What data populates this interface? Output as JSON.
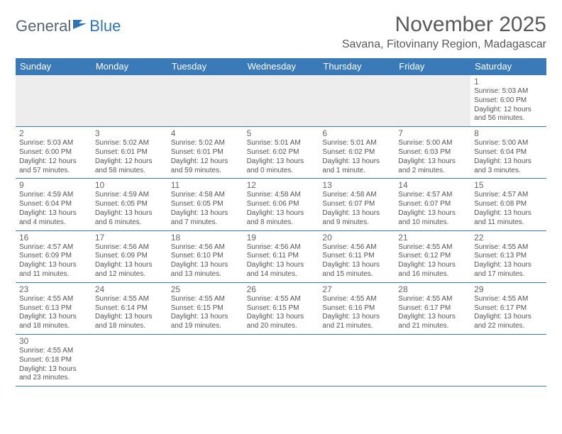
{
  "logo": {
    "general": "General",
    "blue": "Blue"
  },
  "title": "November 2025",
  "location": "Savana, Fitovinany Region, Madagascar",
  "colors": {
    "header_bg": "#3a7ab8",
    "header_text": "#ffffff",
    "title_color": "#595959",
    "logo_gray": "#566573",
    "logo_blue": "#2e75b6",
    "body_text": "#555555",
    "empty_bg": "#ededed",
    "border": "#3a7ab8"
  },
  "day_headers": [
    "Sunday",
    "Monday",
    "Tuesday",
    "Wednesday",
    "Thursday",
    "Friday",
    "Saturday"
  ],
  "weeks": [
    [
      null,
      null,
      null,
      null,
      null,
      null,
      {
        "n": "1",
        "sr": "Sunrise: 5:03 AM",
        "ss": "Sunset: 6:00 PM",
        "d1": "Daylight: 12 hours",
        "d2": "and 56 minutes."
      }
    ],
    [
      {
        "n": "2",
        "sr": "Sunrise: 5:03 AM",
        "ss": "Sunset: 6:00 PM",
        "d1": "Daylight: 12 hours",
        "d2": "and 57 minutes."
      },
      {
        "n": "3",
        "sr": "Sunrise: 5:02 AM",
        "ss": "Sunset: 6:01 PM",
        "d1": "Daylight: 12 hours",
        "d2": "and 58 minutes."
      },
      {
        "n": "4",
        "sr": "Sunrise: 5:02 AM",
        "ss": "Sunset: 6:01 PM",
        "d1": "Daylight: 12 hours",
        "d2": "and 59 minutes."
      },
      {
        "n": "5",
        "sr": "Sunrise: 5:01 AM",
        "ss": "Sunset: 6:02 PM",
        "d1": "Daylight: 13 hours",
        "d2": "and 0 minutes."
      },
      {
        "n": "6",
        "sr": "Sunrise: 5:01 AM",
        "ss": "Sunset: 6:02 PM",
        "d1": "Daylight: 13 hours",
        "d2": "and 1 minute."
      },
      {
        "n": "7",
        "sr": "Sunrise: 5:00 AM",
        "ss": "Sunset: 6:03 PM",
        "d1": "Daylight: 13 hours",
        "d2": "and 2 minutes."
      },
      {
        "n": "8",
        "sr": "Sunrise: 5:00 AM",
        "ss": "Sunset: 6:04 PM",
        "d1": "Daylight: 13 hours",
        "d2": "and 3 minutes."
      }
    ],
    [
      {
        "n": "9",
        "sr": "Sunrise: 4:59 AM",
        "ss": "Sunset: 6:04 PM",
        "d1": "Daylight: 13 hours",
        "d2": "and 4 minutes."
      },
      {
        "n": "10",
        "sr": "Sunrise: 4:59 AM",
        "ss": "Sunset: 6:05 PM",
        "d1": "Daylight: 13 hours",
        "d2": "and 6 minutes."
      },
      {
        "n": "11",
        "sr": "Sunrise: 4:58 AM",
        "ss": "Sunset: 6:05 PM",
        "d1": "Daylight: 13 hours",
        "d2": "and 7 minutes."
      },
      {
        "n": "12",
        "sr": "Sunrise: 4:58 AM",
        "ss": "Sunset: 6:06 PM",
        "d1": "Daylight: 13 hours",
        "d2": "and 8 minutes."
      },
      {
        "n": "13",
        "sr": "Sunrise: 4:58 AM",
        "ss": "Sunset: 6:07 PM",
        "d1": "Daylight: 13 hours",
        "d2": "and 9 minutes."
      },
      {
        "n": "14",
        "sr": "Sunrise: 4:57 AM",
        "ss": "Sunset: 6:07 PM",
        "d1": "Daylight: 13 hours",
        "d2": "and 10 minutes."
      },
      {
        "n": "15",
        "sr": "Sunrise: 4:57 AM",
        "ss": "Sunset: 6:08 PM",
        "d1": "Daylight: 13 hours",
        "d2": "and 11 minutes."
      }
    ],
    [
      {
        "n": "16",
        "sr": "Sunrise: 4:57 AM",
        "ss": "Sunset: 6:09 PM",
        "d1": "Daylight: 13 hours",
        "d2": "and 11 minutes."
      },
      {
        "n": "17",
        "sr": "Sunrise: 4:56 AM",
        "ss": "Sunset: 6:09 PM",
        "d1": "Daylight: 13 hours",
        "d2": "and 12 minutes."
      },
      {
        "n": "18",
        "sr": "Sunrise: 4:56 AM",
        "ss": "Sunset: 6:10 PM",
        "d1": "Daylight: 13 hours",
        "d2": "and 13 minutes."
      },
      {
        "n": "19",
        "sr": "Sunrise: 4:56 AM",
        "ss": "Sunset: 6:11 PM",
        "d1": "Daylight: 13 hours",
        "d2": "and 14 minutes."
      },
      {
        "n": "20",
        "sr": "Sunrise: 4:56 AM",
        "ss": "Sunset: 6:11 PM",
        "d1": "Daylight: 13 hours",
        "d2": "and 15 minutes."
      },
      {
        "n": "21",
        "sr": "Sunrise: 4:55 AM",
        "ss": "Sunset: 6:12 PM",
        "d1": "Daylight: 13 hours",
        "d2": "and 16 minutes."
      },
      {
        "n": "22",
        "sr": "Sunrise: 4:55 AM",
        "ss": "Sunset: 6:13 PM",
        "d1": "Daylight: 13 hours",
        "d2": "and 17 minutes."
      }
    ],
    [
      {
        "n": "23",
        "sr": "Sunrise: 4:55 AM",
        "ss": "Sunset: 6:13 PM",
        "d1": "Daylight: 13 hours",
        "d2": "and 18 minutes."
      },
      {
        "n": "24",
        "sr": "Sunrise: 4:55 AM",
        "ss": "Sunset: 6:14 PM",
        "d1": "Daylight: 13 hours",
        "d2": "and 18 minutes."
      },
      {
        "n": "25",
        "sr": "Sunrise: 4:55 AM",
        "ss": "Sunset: 6:15 PM",
        "d1": "Daylight: 13 hours",
        "d2": "and 19 minutes."
      },
      {
        "n": "26",
        "sr": "Sunrise: 4:55 AM",
        "ss": "Sunset: 6:15 PM",
        "d1": "Daylight: 13 hours",
        "d2": "and 20 minutes."
      },
      {
        "n": "27",
        "sr": "Sunrise: 4:55 AM",
        "ss": "Sunset: 6:16 PM",
        "d1": "Daylight: 13 hours",
        "d2": "and 21 minutes."
      },
      {
        "n": "28",
        "sr": "Sunrise: 4:55 AM",
        "ss": "Sunset: 6:17 PM",
        "d1": "Daylight: 13 hours",
        "d2": "and 21 minutes."
      },
      {
        "n": "29",
        "sr": "Sunrise: 4:55 AM",
        "ss": "Sunset: 6:17 PM",
        "d1": "Daylight: 13 hours",
        "d2": "and 22 minutes."
      }
    ],
    [
      {
        "n": "30",
        "sr": "Sunrise: 4:55 AM",
        "ss": "Sunset: 6:18 PM",
        "d1": "Daylight: 13 hours",
        "d2": "and 23 minutes."
      },
      null,
      null,
      null,
      null,
      null,
      null
    ]
  ]
}
